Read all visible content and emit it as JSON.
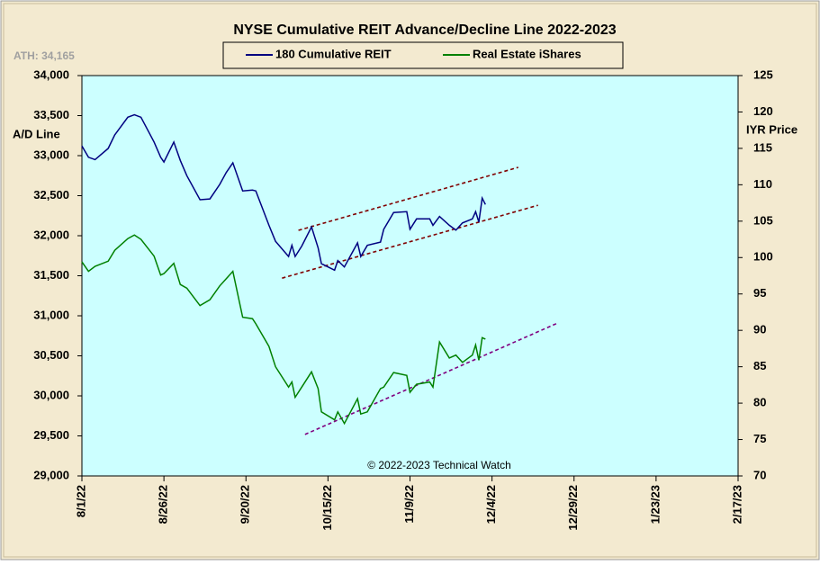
{
  "chart_data": {
    "type": "line",
    "title": "NYSE Cumulative  REIT Advance/Decline  Line 2022-2023",
    "annotation": "ATH: 34,165",
    "copyright": "© 2022-2023  Technical  Watch",
    "y_label": "A/D Line",
    "y2_label": "IYR Price",
    "x": [
      "8/1/22",
      "8/3/22",
      "8/5/22",
      "8/9/22",
      "8/11/22",
      "8/15/22",
      "8/17/22",
      "8/19/22",
      "8/23/22",
      "8/25/22",
      "8/26/22",
      "8/29/22",
      "8/31/22",
      "9/2/22",
      "9/6/22",
      "9/9/22",
      "9/12/22",
      "9/14/22",
      "9/16/22",
      "9/19/22",
      "9/22/22",
      "9/23/22",
      "9/27/22",
      "9/29/22",
      "10/3/22",
      "10/4/22",
      "10/5/22",
      "10/7/22",
      "10/10/22",
      "10/12/22",
      "10/13/22",
      "10/17/22",
      "10/18/22",
      "10/20/22",
      "10/24/22",
      "10/25/22",
      "10/27/22",
      "10/31/22",
      "11/1/22",
      "11/4/22",
      "11/8/22",
      "11/9/22",
      "11/11/22",
      "11/15/22",
      "11/16/22",
      "11/18/22",
      "11/21/22",
      "11/23/22",
      "11/25/22",
      "11/28/22",
      "11/29/22",
      "11/30/22",
      "12/1/22",
      "12/2/22"
    ],
    "series": [
      {
        "name": "180 Cumulative REIT",
        "color": "#000080",
        "axis": "y",
        "values": [
          33120,
          32980,
          32950,
          33090,
          33260,
          33480,
          33510,
          33480,
          33170,
          32980,
          32920,
          33170,
          32940,
          32750,
          32450,
          32460,
          32640,
          32790,
          32910,
          32560,
          32570,
          32560,
          32130,
          31930,
          31740,
          31880,
          31740,
          31870,
          32110,
          31850,
          31650,
          31570,
          31690,
          31610,
          31910,
          31740,
          31880,
          31920,
          32080,
          32290,
          32300,
          32080,
          32210,
          32210,
          32130,
          32240,
          32130,
          32070,
          32160,
          32210,
          32300,
          32170,
          32470,
          32390
        ]
      },
      {
        "name": "Real Estate iShares",
        "color": "#008000",
        "axis": "y2",
        "values": [
          99.4,
          98.1,
          98.8,
          99.5,
          101.0,
          102.6,
          103.1,
          102.5,
          100.2,
          97.6,
          97.8,
          99.2,
          96.3,
          95.8,
          93.4,
          94.2,
          96.1,
          97.1,
          98.1,
          91.8,
          91.6,
          90.9,
          87.8,
          85.0,
          82.2,
          82.9,
          80.8,
          82.2,
          84.3,
          82.0,
          78.8,
          77.7,
          78.8,
          77.2,
          80.6,
          78.5,
          78.8,
          82.0,
          82.2,
          84.2,
          83.8,
          81.5,
          82.6,
          82.9,
          82.2,
          88.4,
          86.2,
          86.6,
          85.6,
          86.6,
          88.0,
          85.9,
          89.0,
          88.8
        ]
      }
    ],
    "trend_lines": [
      {
        "color": "#800000",
        "axis": "y",
        "x": [
          "10/6/22",
          "12/12/22"
        ],
        "values": [
          32067,
          32854
        ]
      },
      {
        "color": "#800000",
        "axis": "y",
        "x": [
          "10/1/22",
          "12/18/22"
        ],
        "values": [
          31470,
          32380
        ]
      },
      {
        "color": "#800080",
        "axis": "y2",
        "x": [
          "10/8/22",
          "12/24/22"
        ],
        "values": [
          75.7,
          91.0
        ]
      }
    ],
    "xlim": [
      "8/1/22",
      "2/17/23"
    ],
    "xticks": [
      "8/1/22",
      "8/26/22",
      "9/20/22",
      "10/15/22",
      "11/9/22",
      "12/4/22",
      "12/29/22",
      "1/23/23",
      "2/17/23"
    ],
    "ylim": [
      29000,
      34000
    ],
    "yticks": [
      {
        "value": 29000,
        "label": "29,000"
      },
      {
        "value": 29500,
        "label": "29,500"
      },
      {
        "value": 30000,
        "label": "30,000"
      },
      {
        "value": 30500,
        "label": "30,500"
      },
      {
        "value": 31000,
        "label": "31,000"
      },
      {
        "value": 31500,
        "label": "31,500"
      },
      {
        "value": 32000,
        "label": "32,000"
      },
      {
        "value": 32500,
        "label": "32,500"
      },
      {
        "value": 33000,
        "label": "33,000"
      },
      {
        "value": 33500,
        "label": "33,500"
      },
      {
        "value": 34000,
        "label": "34,000"
      }
    ],
    "y2lim": [
      70,
      125
    ],
    "y2ticks": [
      70,
      75,
      80,
      85,
      90,
      95,
      100,
      105,
      110,
      115,
      120,
      125
    ],
    "plot_background": "#ccffff",
    "legend": "top"
  }
}
